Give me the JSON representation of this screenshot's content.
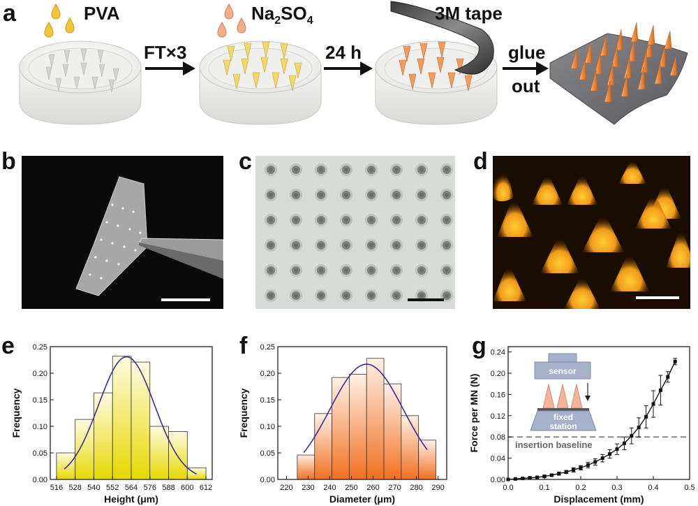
{
  "panels": {
    "a": "a",
    "b": "b",
    "c": "c",
    "d": "d",
    "e": "e",
    "f": "f",
    "g": "g"
  },
  "schematic": {
    "step1_material": "PVA",
    "arrow1_label": "FT×3",
    "step2_material": "Na2SO4",
    "step2_material_base": "Na",
    "step2_sub1": "2",
    "step2_mid": "SO",
    "step2_sub2": "4",
    "arrow2_label": "24 h",
    "step3_material": "3M tape",
    "arrow3_label_top": "glue",
    "arrow3_label_bottom": "out"
  },
  "colors": {
    "pva_drop": "#f1c232",
    "salt_drop": "#f4a582",
    "cone_yellow": "#f0d060",
    "cone_orange": "#f39a5c",
    "hist_e_top": "#e6d800",
    "hist_f_top": "#f07020",
    "fit_line": "#3c2c8c",
    "patch": "#6e6e72"
  },
  "chart_data": [
    {
      "panel": "e",
      "type": "bar",
      "title": "",
      "xlabel": "Height (μm)",
      "ylabel": "Frequency",
      "x_ticks": [
        516,
        528,
        540,
        552,
        564,
        576,
        588,
        600,
        612
      ],
      "y_ticks": [
        "0.00",
        "0.05",
        "0.10",
        "0.15",
        "0.20",
        "0.25"
      ],
      "xlim": [
        512,
        616
      ],
      "ylim": [
        0,
        0.25
      ],
      "bin_edges": [
        516,
        528,
        540,
        552,
        564,
        576,
        588,
        600,
        612
      ],
      "values": [
        0.05,
        0.113,
        0.163,
        0.232,
        0.221,
        0.1,
        0.09,
        0.022
      ],
      "fit": {
        "type": "gaussian",
        "mean": 561,
        "sigma": 18,
        "peak": 0.231,
        "range": [
          521,
          606
        ]
      }
    },
    {
      "panel": "f",
      "type": "bar",
      "title": "",
      "xlabel": "Diameter (μm)",
      "ylabel": "Frequency",
      "x_ticks": [
        220,
        230,
        240,
        250,
        260,
        270,
        280,
        290
      ],
      "y_ticks": [
        "0.00",
        "0.05",
        "0.10",
        "0.15",
        "0.20",
        "0.25"
      ],
      "xlim": [
        216,
        294
      ],
      "ylim": [
        0,
        0.25
      ],
      "bin_edges": [
        225,
        233,
        241,
        249,
        257,
        265,
        273,
        281,
        289
      ],
      "values": [
        0.046,
        0.124,
        0.192,
        0.198,
        0.228,
        0.18,
        0.12,
        0.074
      ],
      "fit": {
        "type": "gaussian",
        "mean": 257,
        "sigma": 17,
        "peak": 0.217,
        "range": [
          228,
          285
        ]
      }
    },
    {
      "panel": "g",
      "type": "line",
      "title": "",
      "xlabel": "Displacement (mm)",
      "ylabel": "Force per MN (N)",
      "x_ticks": [
        "0.0",
        "0.1",
        "0.2",
        "0.3",
        "0.4",
        "0.5"
      ],
      "y_ticks": [
        "0.00",
        "0.04",
        "0.08",
        "0.12",
        "0.16",
        "0.20",
        "0.24"
      ],
      "xlim": [
        0,
        0.5
      ],
      "ylim": [
        0,
        0.25
      ],
      "x": [
        0.0,
        0.02,
        0.04,
        0.06,
        0.08,
        0.1,
        0.12,
        0.14,
        0.16,
        0.18,
        0.2,
        0.22,
        0.24,
        0.26,
        0.28,
        0.3,
        0.32,
        0.34,
        0.36,
        0.38,
        0.4,
        0.42,
        0.44,
        0.46
      ],
      "y": [
        0.0,
        0.001,
        0.002,
        0.003,
        0.004,
        0.006,
        0.008,
        0.011,
        0.014,
        0.018,
        0.022,
        0.027,
        0.033,
        0.04,
        0.048,
        0.057,
        0.068,
        0.082,
        0.098,
        0.118,
        0.142,
        0.168,
        0.193,
        0.222
      ],
      "yerr": [
        0.0,
        0.0,
        0.001,
        0.001,
        0.001,
        0.002,
        0.002,
        0.003,
        0.003,
        0.004,
        0.004,
        0.005,
        0.006,
        0.007,
        0.008,
        0.01,
        0.012,
        0.015,
        0.018,
        0.021,
        0.025,
        0.028,
        0.01,
        0.006
      ],
      "baseline": {
        "value": 0.08,
        "label": "insertion baseline"
      },
      "inset": {
        "sensor_label": "sensor",
        "station_label_1": "fixed",
        "station_label_2": "station"
      }
    }
  ]
}
